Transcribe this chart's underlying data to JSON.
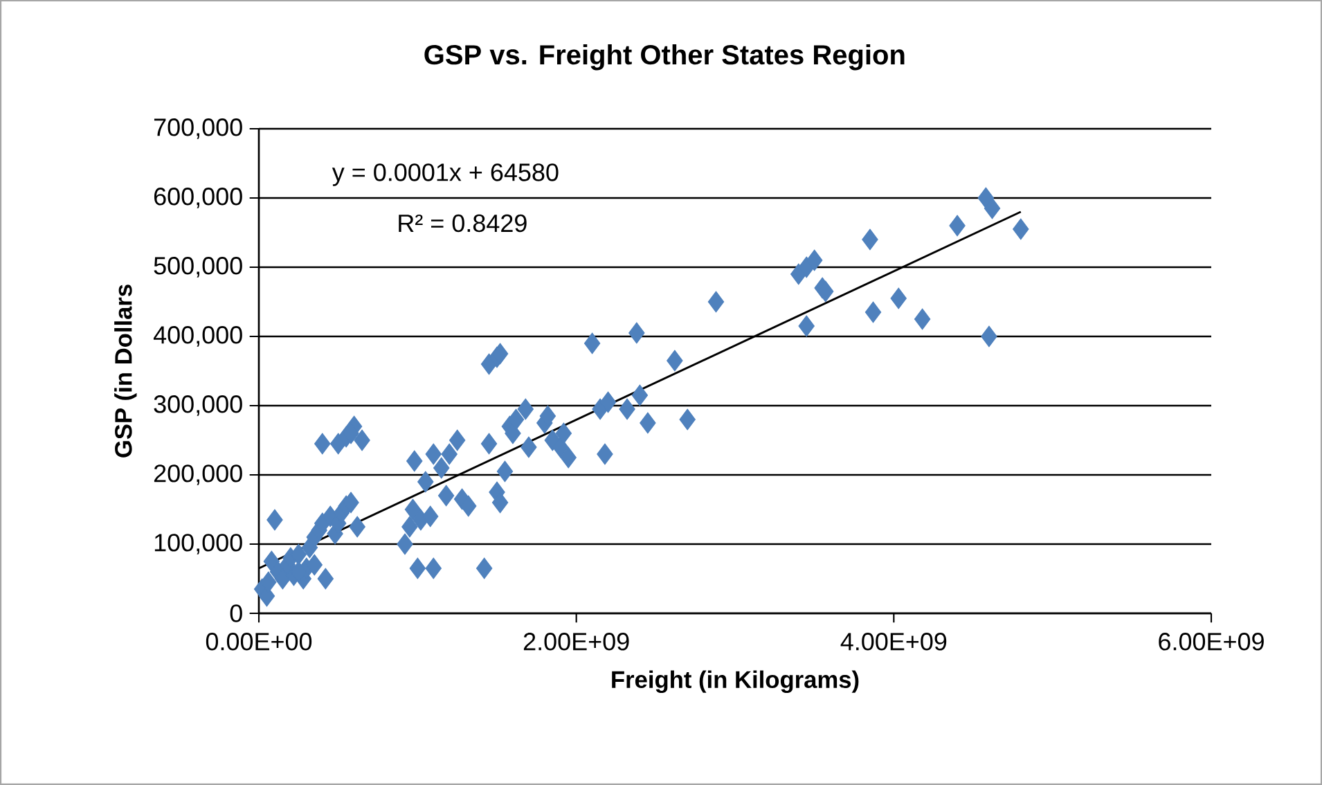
{
  "chart_data": {
    "type": "scatter",
    "title": "GSP vs. Freight Other States Region",
    "xlabel": "Freight (in Kilograms)",
    "ylabel": "GSP (in Dollars",
    "annotations": [
      "y = 0.0001x + 64580",
      "R² = 0.8429"
    ],
    "xlim": [
      0,
      6000000000.0
    ],
    "ylim": [
      0,
      700000
    ],
    "xticks": [
      {
        "value": 0,
        "label": "0.00E+00"
      },
      {
        "value": 2000000000.0,
        "label": "2.00E+09"
      },
      {
        "value": 4000000000.0,
        "label": "4.00E+09"
      },
      {
        "value": 6000000000.0,
        "label": "6.00E+09"
      }
    ],
    "yticks": [
      {
        "value": 0,
        "label": "0"
      },
      {
        "value": 100000,
        "label": "100,000"
      },
      {
        "value": 200000,
        "label": "200,000"
      },
      {
        "value": 300000,
        "label": "300,000"
      },
      {
        "value": 400000,
        "label": "400,000"
      },
      {
        "value": 500000,
        "label": "500,000"
      },
      {
        "value": 600000,
        "label": "600,000"
      },
      {
        "value": 700000,
        "label": "700,000"
      }
    ],
    "grid": "y",
    "marker": "diamond",
    "series": [
      {
        "color": "#4f81bd",
        "x": [
          20000000.0,
          50000000.0,
          60000000.0,
          80000000.0,
          100000000.0,
          120000000.0,
          150000000.0,
          180000000.0,
          200000000.0,
          220000000.0,
          250000000.0,
          280000000.0,
          300000000.0,
          320000000.0,
          350000000.0,
          380000000.0,
          400000000.0,
          420000000.0,
          450000000.0,
          480000000.0,
          500000000.0,
          520000000.0,
          550000000.0,
          580000000.0,
          620000000.0,
          400000000.0,
          500000000.0,
          550000000.0,
          600000000.0,
          650000000.0,
          580000000.0,
          250000000.0,
          350000000.0,
          920000000.0,
          950000000.0,
          970000000.0,
          980000000.0,
          1000000000.0,
          1020000000.0,
          1050000000.0,
          1080000000.0,
          1100000000.0,
          1100000000.0,
          1150000000.0,
          1180000000.0,
          1200000000.0,
          1250000000.0,
          1280000000.0,
          1320000000.0,
          1420000000.0,
          1450000000.0,
          1450000000.0,
          1500000000.0,
          1520000000.0,
          1500000000.0,
          1520000000.0,
          1550000000.0,
          1580000000.0,
          1600000000.0,
          1620000000.0,
          1680000000.0,
          1700000000.0,
          1800000000.0,
          1820000000.0,
          1850000000.0,
          1900000000.0,
          1920000000.0,
          1950000000.0,
          2100000000.0,
          2150000000.0,
          2180000000.0,
          2200000000.0,
          2320000000.0,
          2380000000.0,
          2400000000.0,
          2450000000.0,
          2620000000.0,
          2700000000.0,
          2880000000.0,
          3400000000.0,
          3450000000.0,
          3500000000.0,
          3550000000.0,
          3570000000.0,
          3450000000.0,
          3850000000.0,
          3870000000.0,
          4030000000.0,
          4180000000.0,
          4400000000.0,
          4580000000.0,
          4620000000.0,
          4600000000.0,
          4800000000.0
        ],
        "values": [
          35000,
          25000,
          45000,
          75000,
          135000,
          60000,
          50000,
          70000,
          80000,
          55000,
          85000,
          50000,
          65000,
          95000,
          110000,
          120000,
          130000,
          50000,
          140000,
          115000,
          130000,
          145000,
          155000,
          160000,
          125000,
          245000,
          245000,
          255000,
          270000,
          250000,
          260000,
          60000,
          70000,
          100000,
          125000,
          150000,
          220000,
          65000,
          135000,
          190000,
          140000,
          65000,
          230000,
          210000,
          170000,
          230000,
          250000,
          165000,
          155000,
          65000,
          245000,
          360000,
          370000,
          375000,
          175000,
          160000,
          205000,
          270000,
          260000,
          280000,
          295000,
          240000,
          275000,
          285000,
          250000,
          240000,
          260000,
          225000,
          390000,
          295000,
          230000,
          305000,
          295000,
          405000,
          315000,
          275000,
          365000,
          280000,
          450000,
          490000,
          500000,
          510000,
          470000,
          465000,
          415000,
          540000,
          435000,
          455000,
          425000,
          560000,
          600000,
          585000,
          400000,
          555000
        ]
      },
      {
        "type": "line",
        "color": "#000000",
        "marker": "none",
        "x": [
          0,
          4800000000.0
        ],
        "values": [
          65000,
          580000
        ]
      }
    ]
  }
}
